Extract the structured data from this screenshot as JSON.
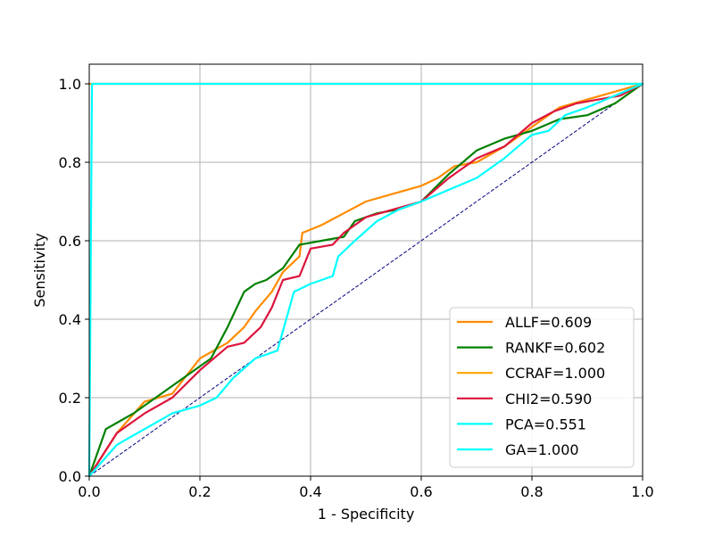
{
  "chart_data": {
    "type": "line",
    "title": "",
    "xlabel": "1 - Specificity",
    "ylabel": "Sensitivity",
    "xlim": [
      0.0,
      1.0
    ],
    "ylim": [
      0.0,
      1.05
    ],
    "xticks": [
      "0.0",
      "0.2",
      "0.4",
      "0.6",
      "0.8",
      "1.0"
    ],
    "yticks": [
      "0.0",
      "0.2",
      "0.4",
      "0.6",
      "0.8",
      "1.0"
    ],
    "grid": true,
    "legend_position": "lower-right",
    "reference_line": {
      "x": [
        0,
        1
      ],
      "y": [
        0,
        1
      ],
      "color": "#000080",
      "style": "dashed"
    },
    "series": [
      {
        "name": "ALLF=0.609",
        "color": "#ff8c00",
        "x": [
          0,
          0.05,
          0.1,
          0.15,
          0.2,
          0.25,
          0.28,
          0.3,
          0.33,
          0.35,
          0.38,
          0.385,
          0.42,
          0.46,
          0.5,
          0.55,
          0.6,
          0.63,
          0.66,
          0.7,
          0.75,
          0.8,
          0.85,
          0.9,
          0.95,
          1.0
        ],
        "y": [
          0,
          0.11,
          0.19,
          0.21,
          0.3,
          0.34,
          0.38,
          0.42,
          0.47,
          0.52,
          0.56,
          0.62,
          0.64,
          0.67,
          0.7,
          0.72,
          0.74,
          0.76,
          0.79,
          0.8,
          0.84,
          0.89,
          0.94,
          0.96,
          0.98,
          1.0
        ]
      },
      {
        "name": "RANKF=0.602",
        "color": "#008000",
        "x": [
          0,
          0.03,
          0.08,
          0.12,
          0.17,
          0.22,
          0.25,
          0.28,
          0.3,
          0.32,
          0.35,
          0.38,
          0.42,
          0.46,
          0.48,
          0.52,
          0.56,
          0.6,
          0.65,
          0.7,
          0.75,
          0.8,
          0.85,
          0.9,
          0.95,
          1.0
        ],
        "y": [
          0,
          0.12,
          0.16,
          0.2,
          0.25,
          0.3,
          0.38,
          0.47,
          0.49,
          0.5,
          0.53,
          0.59,
          0.6,
          0.61,
          0.65,
          0.67,
          0.68,
          0.7,
          0.77,
          0.83,
          0.86,
          0.88,
          0.91,
          0.92,
          0.95,
          1.0
        ]
      },
      {
        "name": "CCRAF=1.000",
        "color": "#ffa500",
        "x": [
          0,
          1.0
        ],
        "y": [
          1.0,
          1.0
        ]
      },
      {
        "name": "CHI2=0.590",
        "color": "#dc143c",
        "x": [
          0,
          0.05,
          0.1,
          0.15,
          0.2,
          0.25,
          0.28,
          0.31,
          0.33,
          0.35,
          0.38,
          0.4,
          0.44,
          0.46,
          0.5,
          0.55,
          0.6,
          0.65,
          0.7,
          0.75,
          0.8,
          0.84,
          0.88,
          0.92,
          0.96,
          1.0
        ],
        "y": [
          0,
          0.11,
          0.16,
          0.2,
          0.27,
          0.33,
          0.34,
          0.38,
          0.43,
          0.5,
          0.51,
          0.58,
          0.59,
          0.62,
          0.66,
          0.68,
          0.7,
          0.76,
          0.81,
          0.84,
          0.9,
          0.93,
          0.95,
          0.96,
          0.97,
          1.0
        ]
      },
      {
        "name": "PCA=0.551",
        "color": "#00ffff",
        "x": [
          0,
          0.05,
          0.1,
          0.15,
          0.2,
          0.23,
          0.26,
          0.3,
          0.34,
          0.35,
          0.37,
          0.4,
          0.44,
          0.45,
          0.48,
          0.52,
          0.56,
          0.6,
          0.65,
          0.7,
          0.75,
          0.8,
          0.83,
          0.86,
          0.9,
          0.95,
          1.0
        ],
        "y": [
          0,
          0.08,
          0.12,
          0.16,
          0.18,
          0.2,
          0.25,
          0.3,
          0.32,
          0.37,
          0.47,
          0.49,
          0.51,
          0.56,
          0.6,
          0.65,
          0.68,
          0.7,
          0.73,
          0.76,
          0.81,
          0.87,
          0.88,
          0.92,
          0.94,
          0.97,
          1.0
        ]
      },
      {
        "name": "GA=1.000",
        "color": "#00ffff",
        "x": [
          0,
          0.005,
          1.0
        ],
        "y": [
          0,
          1.0,
          1.0
        ]
      }
    ]
  }
}
